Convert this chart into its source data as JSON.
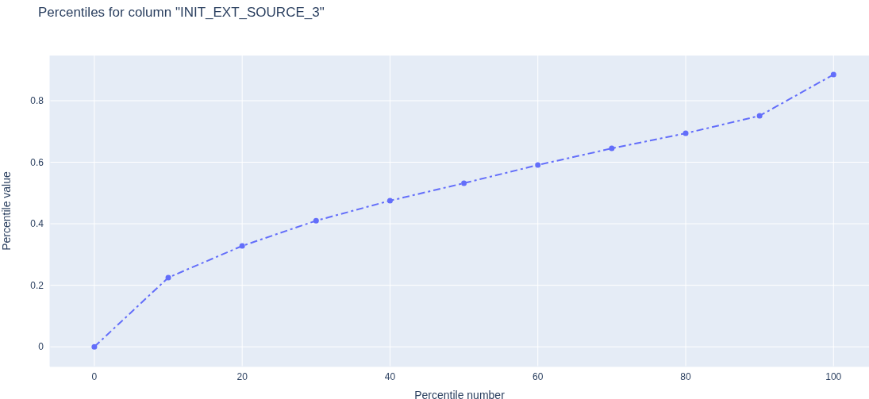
{
  "chart_data": {
    "type": "line",
    "title": "Percentiles for column \"INIT_EXT_SOURCE_3\"",
    "xlabel": "Percentile number",
    "ylabel": "Percentile value",
    "x": [
      0,
      10,
      20,
      30,
      40,
      50,
      60,
      70,
      80,
      90,
      100
    ],
    "series": [
      {
        "color": "#636efa",
        "values": [
          0,
          0.225,
          0.328,
          0.41,
          0.475,
          0.532,
          0.591,
          0.645,
          0.694,
          0.751,
          0.885
        ]
      }
    ],
    "xlim": [
      -6,
      104.8
    ],
    "xticks": [
      0,
      20,
      40,
      60,
      80,
      100
    ],
    "ylim": [
      -0.064,
      0.947
    ],
    "yticks": [
      0,
      0.2,
      0.4,
      0.6,
      0.8
    ],
    "grid": true,
    "legend": false,
    "marker": "circle",
    "line_style": "dashed"
  }
}
